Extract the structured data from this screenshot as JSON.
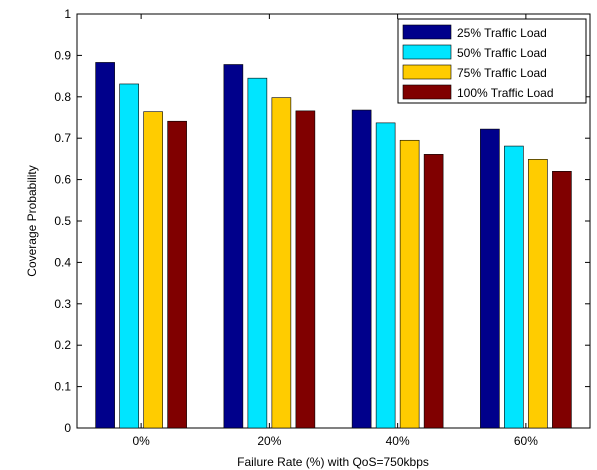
{
  "chart_data": {
    "type": "bar",
    "categories": [
      "0%",
      "20%",
      "40%",
      "60%"
    ],
    "series": [
      {
        "name": "25% Traffic Load",
        "values": [
          0.883,
          0.878,
          0.768,
          0.722
        ],
        "color": "#00008b"
      },
      {
        "name": "50% Traffic Load",
        "values": [
          0.831,
          0.845,
          0.737,
          0.681
        ],
        "color": "#00e5ff"
      },
      {
        "name": "75% Traffic Load",
        "values": [
          0.764,
          0.798,
          0.695,
          0.649
        ],
        "color": "#ffcc00"
      },
      {
        "name": "100% Traffic Load",
        "values": [
          0.741,
          0.766,
          0.661,
          0.62
        ],
        "color": "#800000"
      }
    ],
    "title": "",
    "xlabel": "Failure Rate (%) with QoS=750kbps",
    "ylabel": "Coverage Probability",
    "ylim": [
      0,
      1
    ],
    "yticks": [
      "0",
      "0.1",
      "0.2",
      "0.3",
      "0.4",
      "0.5",
      "0.6",
      "0.7",
      "0.8",
      "0.9",
      "1"
    ],
    "grid": false,
    "legend": "top-right"
  }
}
